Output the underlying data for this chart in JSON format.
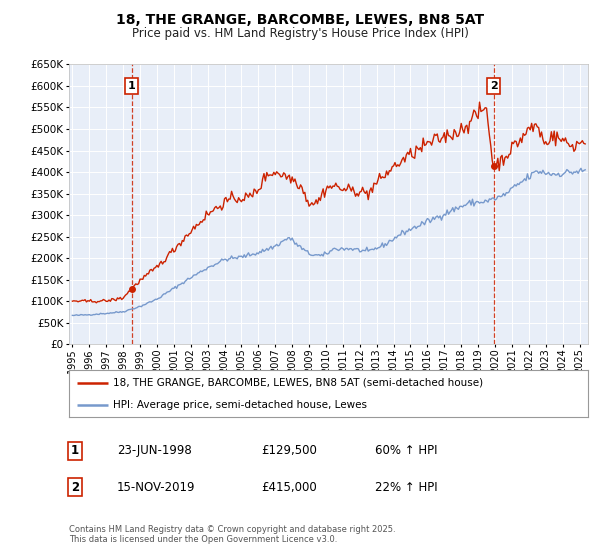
{
  "title": "18, THE GRANGE, BARCOMBE, LEWES, BN8 5AT",
  "subtitle": "Price paid vs. HM Land Registry's House Price Index (HPI)",
  "legend_line1": "18, THE GRANGE, BARCOMBE, LEWES, BN8 5AT (semi-detached house)",
  "legend_line2": "HPI: Average price, semi-detached house, Lewes",
  "hpi_color": "#7799cc",
  "price_color": "#cc2200",
  "vline_color": "#cc2200",
  "annotation1_date": "23-JUN-1998",
  "annotation1_price": 129500,
  "annotation1_hpi_note": "60% ↑ HPI",
  "annotation2_date": "15-NOV-2019",
  "annotation2_price": 415000,
  "annotation2_hpi_note": "22% ↑ HPI",
  "footer": "Contains HM Land Registry data © Crown copyright and database right 2025.\nThis data is licensed under the Open Government Licence v3.0.",
  "ylim": [
    0,
    650000
  ],
  "yticks": [
    0,
    50000,
    100000,
    150000,
    200000,
    250000,
    300000,
    350000,
    400000,
    450000,
    500000,
    550000,
    600000,
    650000
  ],
  "xlim_start": 1994.8,
  "xlim_end": 2025.5,
  "background_color": "#ffffff",
  "plot_bg_color": "#e8eef8"
}
